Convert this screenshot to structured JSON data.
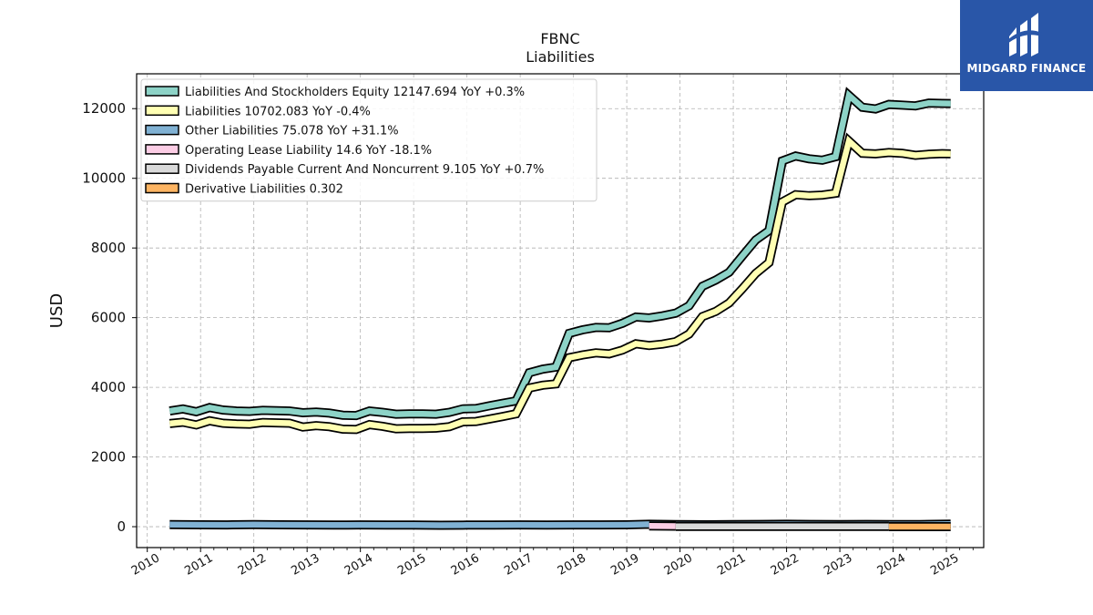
{
  "logo": {
    "text": "MIDGARD FINANCE",
    "bg_color": "#2956a8"
  },
  "chart_data": {
    "type": "line",
    "title": "FBNC",
    "subtitle": "Liabilities",
    "ylabel": "USD",
    "xlabel": "",
    "xlim": [
      2009.8,
      2025.7
    ],
    "ylim": [
      -600,
      13000
    ],
    "xticks": [
      "2010",
      "2011",
      "2012",
      "2013",
      "2014",
      "2015",
      "2016",
      "2017",
      "2018",
      "2019",
      "2020",
      "2021",
      "2022",
      "2023",
      "2024",
      "2025"
    ],
    "yticks": [
      "0",
      "2000",
      "4000",
      "6000",
      "8000",
      "10000",
      "12000"
    ],
    "grid": true,
    "legend_position": "top-left",
    "series": [
      {
        "name": "Liabilities And Stockholders Equity",
        "legend": "Liabilities And Stockholders Equity  12147.694 YoY +0.3%",
        "color": "#8dd3c7",
        "x": [
          2010.42,
          2010.67,
          2010.92,
          2011.17,
          2011.42,
          2011.67,
          2011.92,
          2012.17,
          2012.42,
          2012.67,
          2012.92,
          2013.17,
          2013.42,
          2013.67,
          2013.92,
          2014.17,
          2014.42,
          2014.67,
          2014.92,
          2015.17,
          2015.42,
          2015.67,
          2015.92,
          2016.17,
          2016.42,
          2016.67,
          2016.92,
          2017.17,
          2017.42,
          2017.67,
          2017.92,
          2018.17,
          2018.42,
          2018.67,
          2018.92,
          2019.17,
          2019.42,
          2019.67,
          2019.92,
          2020.17,
          2020.42,
          2020.67,
          2020.92,
          2021.17,
          2021.42,
          2021.67,
          2021.92,
          2022.17,
          2022.42,
          2022.67,
          2022.92,
          2023.17,
          2023.42,
          2023.67,
          2023.92,
          2024.17,
          2024.42,
          2024.67,
          2024.92,
          2025.08
        ],
        "y": [
          3320,
          3380,
          3300,
          3420,
          3350,
          3320,
          3310,
          3340,
          3330,
          3320,
          3270,
          3290,
          3260,
          3200,
          3190,
          3320,
          3280,
          3230,
          3240,
          3240,
          3230,
          3280,
          3380,
          3390,
          3470,
          3540,
          3610,
          4420,
          4520,
          4580,
          5550,
          5650,
          5720,
          5710,
          5840,
          6020,
          5990,
          6050,
          6130,
          6340,
          6900,
          7080,
          7300,
          7770,
          8230,
          8500,
          10500,
          10640,
          10560,
          10520,
          10620,
          12380,
          12040,
          11990,
          12120,
          12100,
          12080,
          12160,
          12150,
          12147.694
        ]
      },
      {
        "name": "Liabilities",
        "legend": "Liabilities  10702.083 YoY -0.4%",
        "color": "#ffffb3",
        "x": [
          2010.42,
          2010.67,
          2010.92,
          2011.17,
          2011.42,
          2011.67,
          2011.92,
          2012.17,
          2012.42,
          2012.67,
          2012.92,
          2013.17,
          2013.42,
          2013.67,
          2013.92,
          2014.17,
          2014.42,
          2014.67,
          2014.92,
          2015.17,
          2015.42,
          2015.67,
          2015.92,
          2016.17,
          2016.42,
          2016.67,
          2016.92,
          2017.17,
          2017.42,
          2017.67,
          2017.92,
          2018.17,
          2018.42,
          2018.67,
          2018.92,
          2019.17,
          2019.42,
          2019.67,
          2019.92,
          2020.17,
          2020.42,
          2020.67,
          2020.92,
          2021.17,
          2021.42,
          2021.67,
          2021.92,
          2022.17,
          2022.42,
          2022.67,
          2022.92,
          2023.17,
          2023.42,
          2023.67,
          2023.92,
          2024.17,
          2024.42,
          2024.67,
          2024.92,
          2025.08
        ],
        "y": [
          2960,
          3000,
          2920,
          3040,
          2970,
          2950,
          2940,
          2990,
          2980,
          2970,
          2860,
          2900,
          2870,
          2800,
          2790,
          2930,
          2880,
          2810,
          2820,
          2820,
          2830,
          2870,
          3010,
          3020,
          3090,
          3160,
          3240,
          3980,
          4060,
          4100,
          4850,
          4930,
          4990,
          4960,
          5070,
          5250,
          5200,
          5240,
          5310,
          5530,
          6030,
          6180,
          6420,
          6830,
          7270,
          7580,
          9320,
          9530,
          9500,
          9520,
          9570,
          11070,
          10720,
          10700,
          10740,
          10720,
          10660,
          10690,
          10710,
          10702.083
        ]
      },
      {
        "name": "Other Liabilities",
        "legend": "Other Liabilities  75.078 YoY +31.1%",
        "color": "#80b1d3",
        "x": [
          2010.42,
          2011.0,
          2011.5,
          2012.0,
          2012.5,
          2013.0,
          2013.5,
          2014.0,
          2014.5,
          2015.0,
          2015.5,
          2016.0,
          2016.5,
          2017.0,
          2017.5,
          2018.0,
          2018.5,
          2019.0,
          2019.42,
          2019.92,
          2020.5,
          2021.0,
          2021.5,
          2022.0,
          2022.5,
          2023.0,
          2023.5,
          2024.0,
          2024.5,
          2025.08
        ],
        "y": [
          60,
          55,
          50,
          60,
          55,
          50,
          45,
          50,
          45,
          45,
          40,
          45,
          45,
          50,
          45,
          50,
          50,
          55,
          70,
          60,
          55,
          60,
          65,
          70,
          65,
          60,
          65,
          60,
          62,
          75.078
        ]
      },
      {
        "name": "Operating Lease Liability",
        "legend": "Operating Lease Liability  14.6 YoY -18.1%",
        "color": "#fccde5",
        "x": [
          2019.42,
          2019.92
        ],
        "y": [
          20,
          14.6
        ]
      },
      {
        "name": "Dividends Payable Current And Noncurrent",
        "legend": "Dividends Payable Current And Noncurrent  9.105 YoY +0.7%",
        "color": "#d9d9d9",
        "x": [
          2019.92,
          2023.92
        ],
        "y": [
          9,
          9.105
        ]
      },
      {
        "name": "Derivative Liabilities",
        "legend": "Derivative Liabilities  0.302",
        "color": "#fdb462",
        "x": [
          2023.92,
          2025.08
        ],
        "y": [
          0.3,
          0.302
        ]
      }
    ]
  }
}
